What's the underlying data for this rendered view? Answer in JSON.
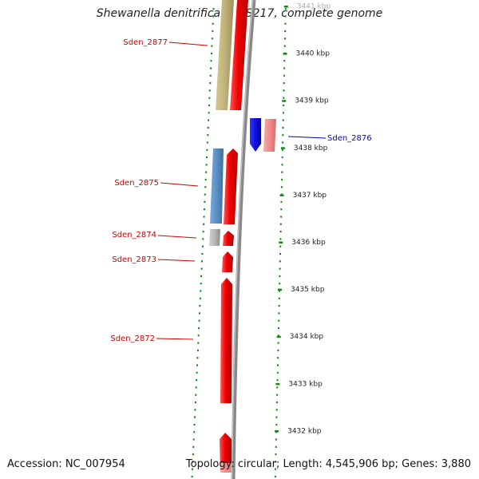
{
  "title": "Shewanella denitrificans OS217, complete genome",
  "footer": {
    "accession": "Accession: NC_007954",
    "summary": "Topology: circular; Length: 4,545,906 bp; Genes: 3,880"
  },
  "colors": {
    "red": "#ee0000",
    "blue": "#1111dd",
    "pink": "#f08a8a",
    "olive": "#bfb27a",
    "steel": "#5b8fc4",
    "grey": "#b5b5b5",
    "dots": "#118811",
    "backbone": "#888888"
  },
  "ticks": [
    {
      "label": "3441 kbp",
      "kbp": 3441
    },
    {
      "label": "3440 kbp",
      "kbp": 3440
    },
    {
      "label": "3439 kbp",
      "kbp": 3439
    },
    {
      "label": "3438 kbp",
      "kbp": 3438
    },
    {
      "label": "3437 kbp",
      "kbp": 3437
    },
    {
      "label": "3436 kbp",
      "kbp": 3436
    },
    {
      "label": "3435 kbp",
      "kbp": 3435
    },
    {
      "label": "3434 kbp",
      "kbp": 3434
    },
    {
      "label": "3433 kbp",
      "kbp": 3433
    },
    {
      "label": "3432 kbp",
      "kbp": 3432
    }
  ],
  "genes": [
    {
      "name": "Sden_2877",
      "label_color": "#cc0000"
    },
    {
      "name": "Sden_2876",
      "label_color": "#0000cc"
    },
    {
      "name": "Sden_2875",
      "label_color": "#cc0000"
    },
    {
      "name": "Sden_2874",
      "label_color": "#cc0000"
    },
    {
      "name": "Sden_2873",
      "label_color": "#cc0000"
    },
    {
      "name": "Sden_2872",
      "label_color": "#cc0000"
    }
  ]
}
